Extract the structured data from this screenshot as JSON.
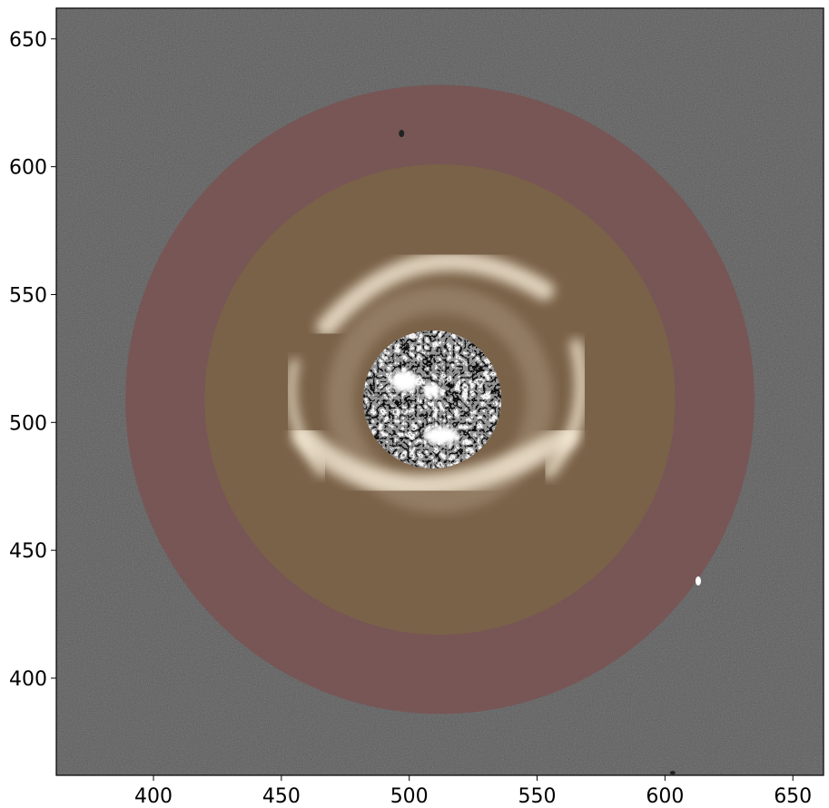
{
  "figure": {
    "type": "image",
    "description_units": "pixel coordinates of astronomical image",
    "xlim": [
      362,
      662
    ],
    "ylim": [
      362,
      662
    ],
    "x_ticks": [
      "400",
      "450",
      "500",
      "550",
      "600",
      "650"
    ],
    "y_ticks": [
      "400",
      "450",
      "500",
      "550",
      "600",
      "650"
    ],
    "x_tick_values": [
      400,
      450,
      500,
      550,
      600,
      650
    ],
    "y_tick_values": [
      400,
      450,
      500,
      550,
      600,
      650
    ],
    "colors": {
      "background_noise": "#5a5a5a",
      "outer_annulus": "#7a5252",
      "inner_disk": "#7a6248",
      "spiral_highlight": "#fff4e0",
      "frame": "#000000"
    },
    "overlays": {
      "outer_annulus": {
        "center": [
          512,
          509
        ],
        "outer_radius": 123,
        "inner_radius": 92
      },
      "inner_disk": {
        "center": [
          512,
          509
        ],
        "radius": 92
      },
      "mask": {
        "center": [
          509,
          509
        ],
        "radius": 27
      }
    }
  }
}
